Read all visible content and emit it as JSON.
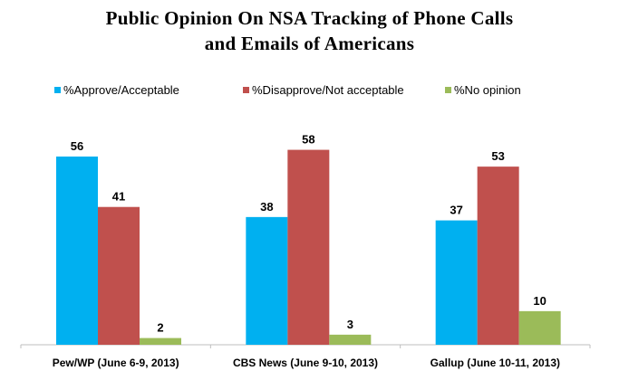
{
  "chart_data": {
    "type": "bar",
    "title": [
      "Public Opinion On  NSA Tracking of Phone Calls",
      "and Emails of Americans"
    ],
    "categories": [
      "Pew/WP (June 6-9, 2013)",
      "CBS News (June 9-10, 2013)",
      "Gallup (June 10-11, 2013)"
    ],
    "series": [
      {
        "name": "%Approve/Acceptable",
        "color": "#00B0F0",
        "values": [
          56,
          38,
          37
        ]
      },
      {
        "name": "%Disapprove/Not acceptable",
        "color": "#C0504D",
        "values": [
          41,
          58,
          53
        ]
      },
      {
        "name": "%No opinion",
        "color": "#9BBB59",
        "values": [
          2,
          3,
          10
        ]
      }
    ],
    "xlabel": "",
    "ylabel": "",
    "ylim": [
      0,
      60
    ],
    "grid": false,
    "legend": "top",
    "data_labels": true
  }
}
